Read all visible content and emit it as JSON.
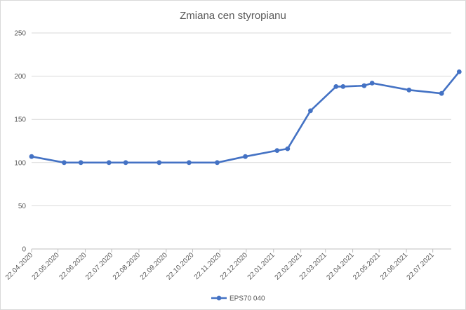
{
  "chart_data": {
    "type": "line",
    "title": "Zmiana cen styropianu",
    "xlabel": "",
    "ylabel": "",
    "ylim": [
      0,
      250
    ],
    "yticks": [
      "0",
      "50",
      "100",
      "150",
      "200",
      "250"
    ],
    "xticks": [
      "22.04.2020",
      "22.05.2020",
      "22.06.2020",
      "22.07.2020",
      "22.08.2020",
      "22.09.2020",
      "22.10.2020",
      "22.11.2020",
      "22.12.2020",
      "22.01.2021",
      "22.02.2021",
      "22.03.2021",
      "22.04.2021",
      "22.05.2021",
      "22.06.2021",
      "22.07.2021"
    ],
    "xlim": [
      "2020-04-22",
      "2021-08-12"
    ],
    "grid": true,
    "legend": "bottom",
    "series": [
      {
        "name": "EPS70 040",
        "color": "#4472c4",
        "x": [
          "2020-04-22",
          "2020-05-29",
          "2020-06-17",
          "2020-07-19",
          "2020-08-07",
          "2020-09-14",
          "2020-10-18",
          "2020-11-19",
          "2020-12-21",
          "2021-01-26",
          "2021-02-07",
          "2021-03-05",
          "2021-04-03",
          "2021-04-11",
          "2021-05-05",
          "2021-05-14",
          "2021-06-25",
          "2021-08-01",
          "2021-08-21"
        ],
        "values": [
          107,
          100,
          100,
          100,
          100,
          100,
          100,
          100,
          107,
          114,
          116,
          160,
          188,
          188,
          189,
          192,
          184,
          180,
          205
        ]
      }
    ]
  }
}
